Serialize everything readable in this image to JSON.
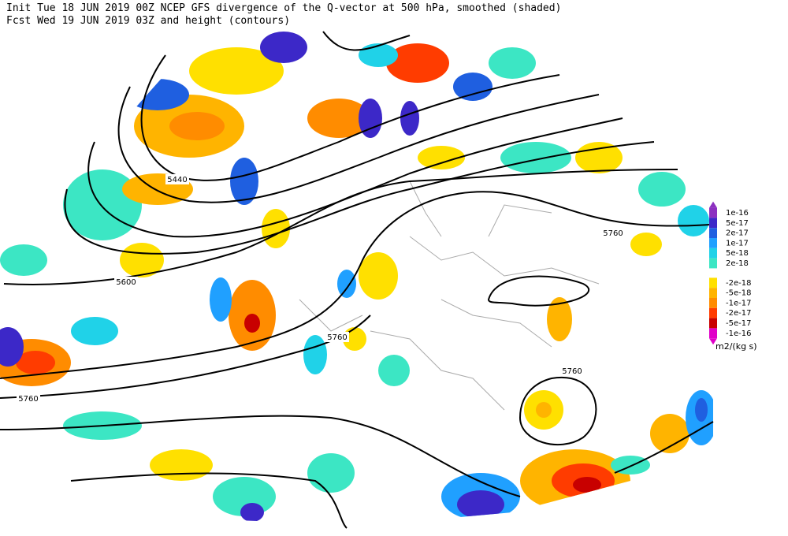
{
  "header": {
    "line1": "Init  Tue 18 JUN 2019 00Z  NCEP GFS divergence of the Q-vector at 500 hPa, smoothed (shaded)",
    "line2": "Fcst Wed 19 JUN 2019 03Z  and height (contours)"
  },
  "contour_labels": [
    5440,
    5600,
    5760,
    5760,
    5760,
    5760
  ],
  "colorbar": {
    "labels": [
      "1e-16",
      "5e-17",
      "2e-17",
      "1e-17",
      "5e-18",
      "2e-18",
      "-2e-18",
      "-5e-18",
      "-1e-17",
      "-2e-17",
      "-5e-17",
      "-1e-16"
    ],
    "units": "m2/(kg s)"
  }
}
